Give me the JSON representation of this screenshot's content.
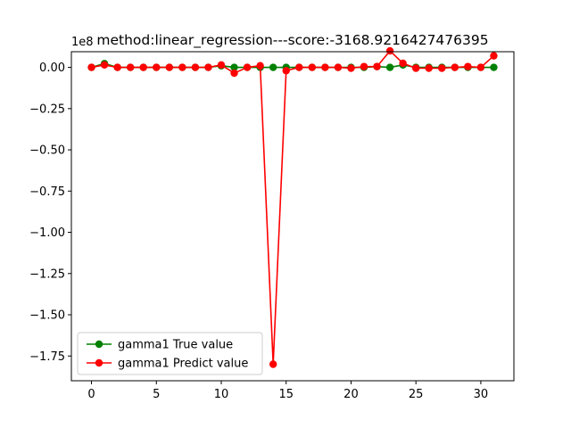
{
  "chart_data": {
    "type": "line",
    "title": "method:linear_regression---score:-3168.9216427476395",
    "offset_text": "1e8",
    "xlabel": "",
    "ylabel": "",
    "x": [
      0,
      1,
      2,
      3,
      4,
      5,
      6,
      7,
      8,
      9,
      10,
      11,
      12,
      13,
      14,
      15,
      16,
      17,
      18,
      19,
      20,
      21,
      22,
      23,
      24,
      25,
      26,
      27,
      28,
      29,
      30,
      31
    ],
    "xlim": [
      -1.55,
      32.55
    ],
    "ylim": [
      -1.9,
      0.095
    ],
    "x_ticks": [
      0,
      5,
      10,
      15,
      20,
      25,
      30
    ],
    "x_tick_labels": [
      "0",
      "5",
      "10",
      "15",
      "20",
      "25",
      "30"
    ],
    "y_ticks": [
      0.0,
      -0.25,
      -0.5,
      -0.75,
      -1.0,
      -1.25,
      -1.5,
      -1.75
    ],
    "y_tick_labels": [
      "0.00",
      "−0.25",
      "−0.50",
      "−0.75",
      "−1.00",
      "−1.25",
      "−1.50",
      "−1.75"
    ],
    "series": [
      {
        "name": "gamma1 True value",
        "color": "#008000",
        "values": [
          0,
          0.023,
          0,
          0,
          0,
          0,
          0,
          0,
          0,
          0,
          0.01,
          0,
          0,
          0,
          0,
          0,
          0,
          0,
          0,
          0,
          0,
          0,
          0.005,
          0,
          0.015,
          0,
          0,
          0,
          0,
          0,
          0,
          0
        ]
      },
      {
        "name": "gamma1 Predict value",
        "color": "#ff0000",
        "values": [
          0,
          0.015,
          0,
          0,
          0,
          0,
          0,
          0,
          0,
          0,
          0.015,
          -0.035,
          0,
          0.01,
          -1.8,
          -0.02,
          0,
          0,
          0,
          0,
          -0.005,
          0.005,
          0.005,
          0.1,
          0.025,
          -0.005,
          -0.005,
          -0.005,
          0,
          0.005,
          0,
          0.07
        ]
      }
    ],
    "legend_position": "lower left",
    "grid": false
  }
}
